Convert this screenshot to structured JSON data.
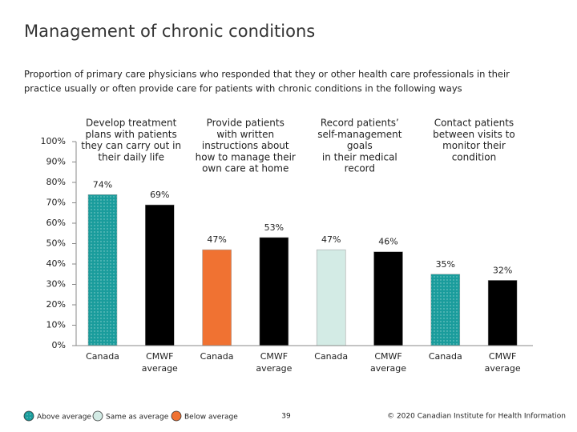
{
  "chart_data": {
    "type": "bar",
    "title": "Management of chronic conditions",
    "subtitle": [
      "Proportion of primary care physicians who responded that they or other health care professionals in their",
      "practice usually or often provide care for patients with chronic conditions in the following ways"
    ],
    "groups": [
      [
        "Develop treatment",
        "plans with patients",
        "they can carry out in",
        "their daily life"
      ],
      [
        "Provide patients",
        "with written",
        "instructions about",
        "how to manage their",
        "own care at home"
      ],
      [
        "Record patients’",
        "self-management",
        "goals",
        "in their medical",
        "record"
      ],
      [
        "Contact patients",
        "between visits to",
        "monitor their",
        "condition"
      ]
    ],
    "categories": [
      "Canada",
      "CMWF average",
      "Canada",
      "CMWF average",
      "Canada",
      "CMWF average",
      "Canada",
      "CMWF average"
    ],
    "values": [
      74,
      69,
      47,
      53,
      47,
      46,
      35,
      32
    ],
    "value_labels": [
      "74%",
      "69%",
      "47%",
      "53%",
      "47%",
      "46%",
      "35%",
      "32%"
    ],
    "colors": [
      "#1a9c9c",
      "#000000",
      "#f07232",
      "#000000",
      "#d3ebe5",
      "#000000",
      "#1a9c9c",
      "#000000"
    ],
    "ylim": [
      0,
      100
    ],
    "yticks": [
      {
        "value": 0,
        "label": "0%"
      },
      {
        "value": 10,
        "label": "10%"
      },
      {
        "value": 20,
        "label": "20%"
      },
      {
        "value": 30,
        "label": "30%"
      },
      {
        "value": 40,
        "label": "40%"
      },
      {
        "value": 50,
        "label": "50%"
      },
      {
        "value": 60,
        "label": "60%"
      },
      {
        "value": 70,
        "label": "70%"
      },
      {
        "value": 80,
        "label": "80%"
      },
      {
        "value": 90,
        "label": "90%"
      },
      {
        "value": 100,
        "label": "100%"
      }
    ],
    "legend": [
      {
        "label": "Above average",
        "color": "#1a9c9c"
      },
      {
        "label": "Same as average",
        "color": "#d3ebe5"
      },
      {
        "label": "Below average",
        "color": "#f07232"
      }
    ],
    "page_number": "39",
    "footer": "© 2020 Canadian Institute for Health Information"
  }
}
